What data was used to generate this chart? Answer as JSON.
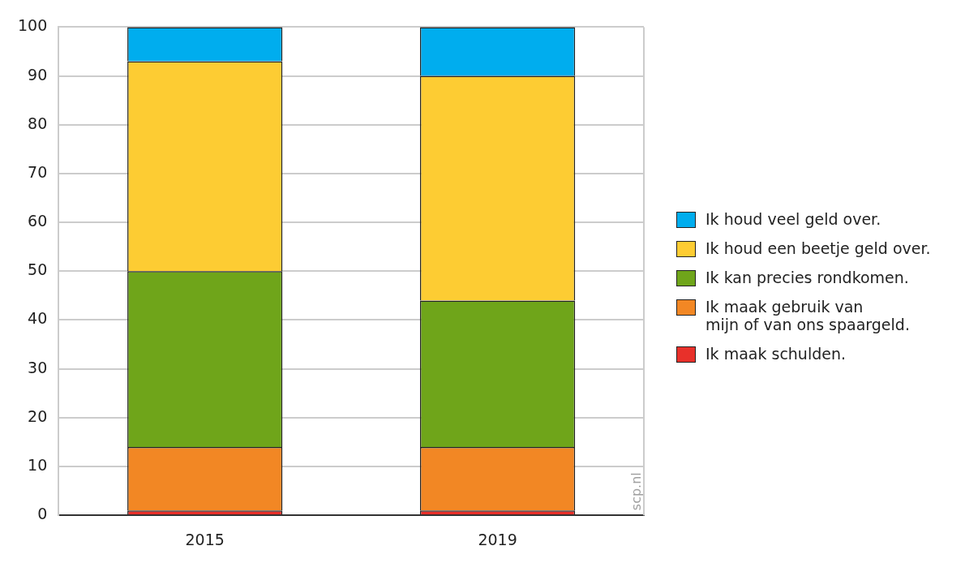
{
  "chart_data": {
    "type": "bar",
    "stacked": true,
    "categories": [
      "2015",
      "2019"
    ],
    "series": [
      {
        "name": "Ik maak schulden.",
        "color": "#e8302a",
        "values": [
          1,
          1
        ]
      },
      {
        "name": "Ik maak gebruik van\nmijn of van ons spaargeld.",
        "color": "#f28724",
        "values": [
          13,
          13
        ]
      },
      {
        "name": "Ik kan precies rondkomen.",
        "color": "#6fa51a",
        "values": [
          36,
          30
        ]
      },
      {
        "name": "Ik houd een beetje geld over.",
        "color": "#fdcc33",
        "values": [
          43,
          46
        ]
      },
      {
        "name": "Ik houd veel geld over.",
        "color": "#00adee",
        "values": [
          7,
          10
        ]
      }
    ],
    "ylim": [
      0,
      100
    ],
    "yticks": [
      0,
      10,
      20,
      30,
      40,
      50,
      60,
      70,
      80,
      90,
      100
    ],
    "grid": "y",
    "legend": "right",
    "annotations": [
      "scp.nl"
    ]
  }
}
